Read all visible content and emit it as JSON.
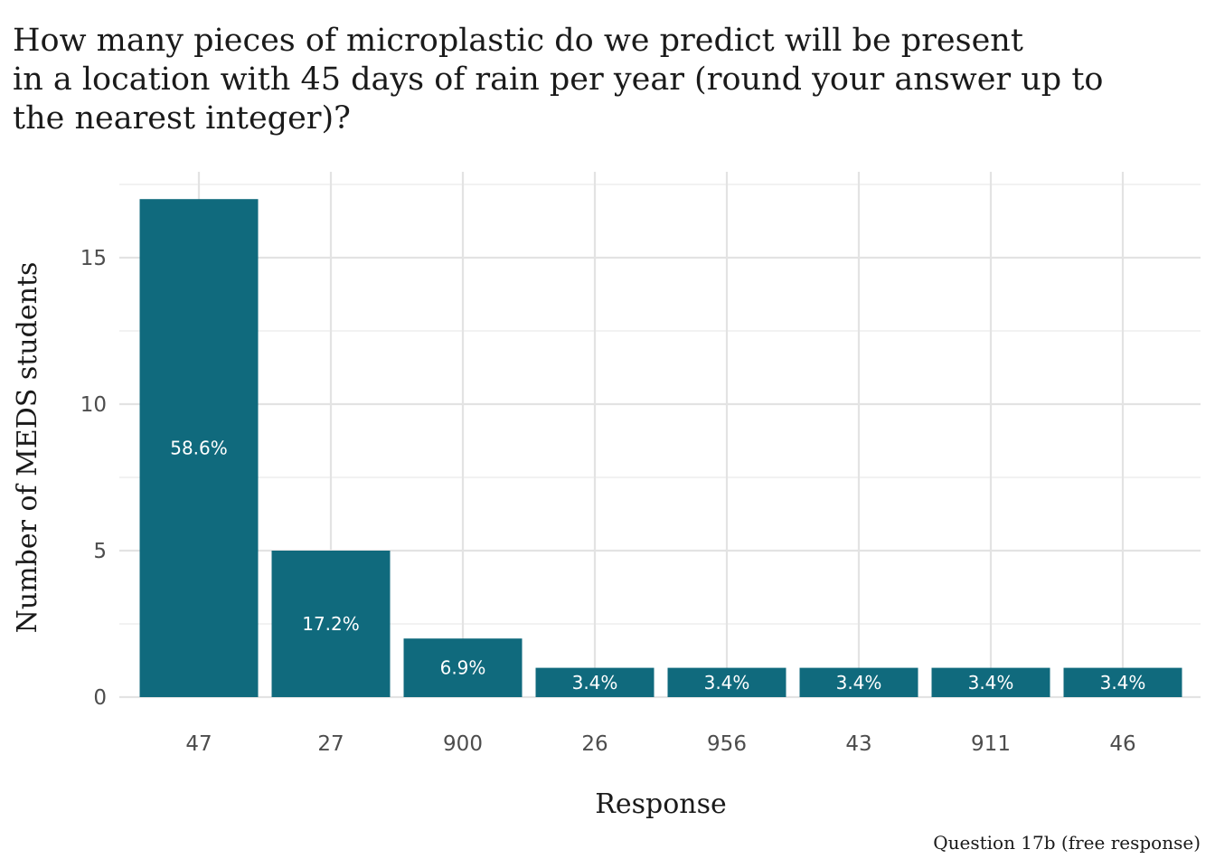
{
  "chart_data": {
    "type": "bar",
    "title_lines": [
      "How many pieces of microplastic do we predict will be present",
      "in a location with 45 days of rain per year (round your answer up to",
      "the nearest integer)?"
    ],
    "xlabel": "Response",
    "ylabel": "Number of MEDS students",
    "caption": "Question 17b (free response)",
    "categories": [
      "47",
      "27",
      "900",
      "26",
      "956",
      "43",
      "911",
      "46"
    ],
    "values": [
      17,
      5,
      2,
      1,
      1,
      1,
      1,
      1
    ],
    "labels": [
      "58.6%",
      "17.2%",
      "6.9%",
      "3.4%",
      "3.4%",
      "3.4%",
      "3.4%",
      "3.4%"
    ],
    "ylim": [
      0,
      17.5
    ],
    "yticks": [
      0,
      5,
      10,
      15
    ],
    "grid": true,
    "bar_color": "#106a7d",
    "legend": "none"
  }
}
